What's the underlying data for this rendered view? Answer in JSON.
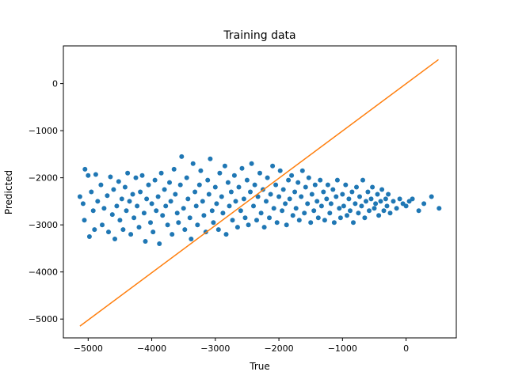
{
  "chart_data": {
    "type": "scatter",
    "title": "Training data",
    "xlabel": "True",
    "ylabel": "Predicted",
    "xlim": [
      -5390,
      790
    ],
    "ylim": [
      -5400,
      800
    ],
    "xticks": [
      {
        "value": -5000,
        "label": "−5000"
      },
      {
        "value": -4000,
        "label": "−4000"
      },
      {
        "value": -3000,
        "label": "−3000"
      },
      {
        "value": -2000,
        "label": "−2000"
      },
      {
        "value": -1000,
        "label": "−1000"
      },
      {
        "value": 0,
        "label": "0"
      }
    ],
    "yticks": [
      {
        "value": 0,
        "label": "0"
      },
      {
        "value": -1000,
        "label": "−1000"
      },
      {
        "value": -2000,
        "label": "−2000"
      },
      {
        "value": -3000,
        "label": "−3000"
      },
      {
        "value": -4000,
        "label": "−4000"
      },
      {
        "value": -5000,
        "label": "−5000"
      }
    ],
    "grid": false,
    "series": [
      {
        "kind": "scatter",
        "color": "#1f77b4",
        "points": [
          [
            -5130,
            -2400
          ],
          [
            -5080,
            -2550
          ],
          [
            -5050,
            -1820
          ],
          [
            -5000,
            -1950
          ],
          [
            -4950,
            -2300
          ],
          [
            -4920,
            -2700
          ],
          [
            -4900,
            -3100
          ],
          [
            -5060,
            -2900
          ],
          [
            -4980,
            -3250
          ],
          [
            -4880,
            -1930
          ],
          [
            -4850,
            -2500
          ],
          [
            -4800,
            -2150
          ],
          [
            -4780,
            -3000
          ],
          [
            -4750,
            -2650
          ],
          [
            -4700,
            -2380
          ],
          [
            -4680,
            -3150
          ],
          [
            -4650,
            -1980
          ],
          [
            -4620,
            -2780
          ],
          [
            -4600,
            -2250
          ],
          [
            -4580,
            -3300
          ],
          [
            -4550,
            -2600
          ],
          [
            -4520,
            -2080
          ],
          [
            -4500,
            -2900
          ],
          [
            -4470,
            -2450
          ],
          [
            -4450,
            -3100
          ],
          [
            -4420,
            -2200
          ],
          [
            -4400,
            -2700
          ],
          [
            -4380,
            -1900
          ],
          [
            -4350,
            -2500
          ],
          [
            -4330,
            -3200
          ],
          [
            -4300,
            -2350
          ],
          [
            -4280,
            -2850
          ],
          [
            -4250,
            -2000
          ],
          [
            -4230,
            -2600
          ],
          [
            -4200,
            -3050
          ],
          [
            -4180,
            -2300
          ],
          [
            -4150,
            -1950
          ],
          [
            -4120,
            -2750
          ],
          [
            -4100,
            -3350
          ],
          [
            -4080,
            -2450
          ],
          [
            -4050,
            -2150
          ],
          [
            -4020,
            -2950
          ],
          [
            -4000,
            -2550
          ],
          [
            -3980,
            -3150
          ],
          [
            -3950,
            -2050
          ],
          [
            -3930,
            -2700
          ],
          [
            -3900,
            -2400
          ],
          [
            -3880,
            -3400
          ],
          [
            -3850,
            -1900
          ],
          [
            -3830,
            -2800
          ],
          [
            -3800,
            -2250
          ],
          [
            -3780,
            -2600
          ],
          [
            -3750,
            -3000
          ],
          [
            -3720,
            -2100
          ],
          [
            -3700,
            -2500
          ],
          [
            -3680,
            -3200
          ],
          [
            -3650,
            -1820
          ],
          [
            -3630,
            -2350
          ],
          [
            -3600,
            -2750
          ],
          [
            -3580,
            -2950
          ],
          [
            -3550,
            -2150
          ],
          [
            -3530,
            -1550
          ],
          [
            -3500,
            -2650
          ],
          [
            -3480,
            -3100
          ],
          [
            -3450,
            -2000
          ],
          [
            -3430,
            -2450
          ],
          [
            -3400,
            -2850
          ],
          [
            -3380,
            -3300
          ],
          [
            -3350,
            -1700
          ],
          [
            -3320,
            -2300
          ],
          [
            -3300,
            -2600
          ],
          [
            -3280,
            -3000
          ],
          [
            -3250,
            -2150
          ],
          [
            -3230,
            -1850
          ],
          [
            -3200,
            -2500
          ],
          [
            -3180,
            -2800
          ],
          [
            -3150,
            -3150
          ],
          [
            -3120,
            -2050
          ],
          [
            -3100,
            -2350
          ],
          [
            -3080,
            -1600
          ],
          [
            -3050,
            -2700
          ],
          [
            -3030,
            -2950
          ],
          [
            -3000,
            -2200
          ],
          [
            -2980,
            -2550
          ],
          [
            -2950,
            -3100
          ],
          [
            -2930,
            -1900
          ],
          [
            -2900,
            -2400
          ],
          [
            -2880,
            -2750
          ],
          [
            -2850,
            -1750
          ],
          [
            -2830,
            -3200
          ],
          [
            -2800,
            -2100
          ],
          [
            -2780,
            -2600
          ],
          [
            -2750,
            -2300
          ],
          [
            -2730,
            -2900
          ],
          [
            -2700,
            -1950
          ],
          [
            -2680,
            -2500
          ],
          [
            -2650,
            -3050
          ],
          [
            -2630,
            -2200
          ],
          [
            -2600,
            -2700
          ],
          [
            -2580,
            -1800
          ],
          [
            -2550,
            -2450
          ],
          [
            -2530,
            -2850
          ],
          [
            -2500,
            -2050
          ],
          [
            -2480,
            -3000
          ],
          [
            -2450,
            -2300
          ],
          [
            -2430,
            -1700
          ],
          [
            -2400,
            -2600
          ],
          [
            -2380,
            -2150
          ],
          [
            -2350,
            -2900
          ],
          [
            -2330,
            -2400
          ],
          [
            -2300,
            -1900
          ],
          [
            -2280,
            -2750
          ],
          [
            -2250,
            -2250
          ],
          [
            -2230,
            -3050
          ],
          [
            -2200,
            -2500
          ],
          [
            -2180,
            -2000
          ],
          [
            -2150,
            -2850
          ],
          [
            -2130,
            -2350
          ],
          [
            -2100,
            -1750
          ],
          [
            -2080,
            -2650
          ],
          [
            -2050,
            -2150
          ],
          [
            -2030,
            -2950
          ],
          [
            -2000,
            -2400
          ],
          [
            -1980,
            -1850
          ],
          [
            -1950,
            -2700
          ],
          [
            -1930,
            -2250
          ],
          [
            -1900,
            -2550
          ],
          [
            -1880,
            -3000
          ],
          [
            -1850,
            -2050
          ],
          [
            -1830,
            -2450
          ],
          [
            -1800,
            -1950
          ],
          [
            -1780,
            -2800
          ],
          [
            -1750,
            -2300
          ],
          [
            -1730,
            -2650
          ],
          [
            -1700,
            -2100
          ],
          [
            -1680,
            -2900
          ],
          [
            -1650,
            -2400
          ],
          [
            -1630,
            -1850
          ],
          [
            -1600,
            -2750
          ],
          [
            -1580,
            -2200
          ],
          [
            -1550,
            -2550
          ],
          [
            -1530,
            -2000
          ],
          [
            -1500,
            -2950
          ],
          [
            -1480,
            -2350
          ],
          [
            -1450,
            -2700
          ],
          [
            -1430,
            -2150
          ],
          [
            -1400,
            -2500
          ],
          [
            -1380,
            -2850
          ],
          [
            -1350,
            -2050
          ],
          [
            -1330,
            -2600
          ],
          [
            -1300,
            -2300
          ],
          [
            -1280,
            -2900
          ],
          [
            -1250,
            -2450
          ],
          [
            -1230,
            -2150
          ],
          [
            -1200,
            -2750
          ],
          [
            -1180,
            -2550
          ],
          [
            -1150,
            -2250
          ],
          [
            -1130,
            -2950
          ],
          [
            -1100,
            -2400
          ],
          [
            -1080,
            -2050
          ],
          [
            -1050,
            -2650
          ],
          [
            -1030,
            -2850
          ],
          [
            -1000,
            -2350
          ],
          [
            -980,
            -2600
          ],
          [
            -950,
            -2150
          ],
          [
            -930,
            -2800
          ],
          [
            -900,
            -2450
          ],
          [
            -880,
            -2700
          ],
          [
            -850,
            -2300
          ],
          [
            -830,
            -2950
          ],
          [
            -800,
            -2550
          ],
          [
            -780,
            -2200
          ],
          [
            -750,
            -2750
          ],
          [
            -730,
            -2400
          ],
          [
            -700,
            -2600
          ],
          [
            -680,
            -2050
          ],
          [
            -650,
            -2850
          ],
          [
            -630,
            -2500
          ],
          [
            -600,
            -2300
          ],
          [
            -580,
            -2700
          ],
          [
            -550,
            -2450
          ],
          [
            -530,
            -2200
          ],
          [
            -500,
            -2650
          ],
          [
            -480,
            -2550
          ],
          [
            -450,
            -2350
          ],
          [
            -430,
            -2800
          ],
          [
            -400,
            -2500
          ],
          [
            -380,
            -2250
          ],
          [
            -350,
            -2700
          ],
          [
            -320,
            -2450
          ],
          [
            -300,
            -2600
          ],
          [
            -280,
            -2350
          ],
          [
            -250,
            -2750
          ],
          [
            -200,
            -2500
          ],
          [
            -150,
            -2650
          ],
          [
            -100,
            -2450
          ],
          [
            -50,
            -2550
          ],
          [
            0,
            -2600
          ],
          [
            50,
            -2500
          ],
          [
            100,
            -2450
          ],
          [
            200,
            -2700
          ],
          [
            280,
            -2550
          ],
          [
            400,
            -2400
          ],
          [
            520,
            -2650
          ]
        ]
      },
      {
        "kind": "line",
        "color": "#ff7f0e",
        "points": [
          [
            -5130,
            -5150
          ],
          [
            510,
            510
          ]
        ]
      }
    ]
  }
}
